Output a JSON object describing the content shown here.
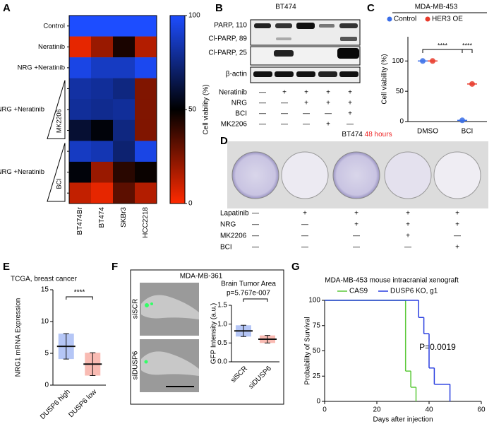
{
  "panel_labels": [
    "A",
    "B",
    "C",
    "D",
    "E",
    "F",
    "G"
  ],
  "chart_data": [
    {
      "type": "heatmap",
      "rows": [
        "Control",
        "Neratinib",
        "NRG +Neratinib",
        null,
        "NRG +Neratinib",
        null,
        null,
        "NRG +Neratinib",
        null
      ],
      "row_annotations": [
        "MK2206",
        "BCI"
      ],
      "columns": [
        "BT474Br",
        "BT474",
        "SKBr3",
        "HCC2218"
      ],
      "values": [
        [
          100,
          100,
          100,
          100
        ],
        [
          5,
          20,
          45,
          15
        ],
        [
          95,
          88,
          88,
          97
        ],
        [
          82,
          80,
          75,
          25
        ],
        [
          80,
          78,
          80,
          25
        ],
        [
          60,
          52,
          75,
          25
        ],
        [
          88,
          85,
          72,
          95
        ],
        [
          52,
          20,
          42,
          48
        ],
        [
          12,
          5,
          32,
          15
        ]
      ],
      "colorbar_label": "Cell viability (%)",
      "clim": [
        0,
        100
      ],
      "cticks": [
        0,
        50,
        100
      ],
      "colors": [
        "#ff2a00",
        "#000000",
        "#1d4dff"
      ]
    },
    {
      "type": "dot",
      "title": "MDA-MB-453",
      "categories": [
        "DMSO",
        "BCI"
      ],
      "series": [
        {
          "name": "Control",
          "color": "#3a6ee8",
          "values": [
            100,
            2
          ]
        },
        {
          "name": "HER3 OE",
          "color": "#e8392a",
          "values": [
            100,
            62
          ]
        }
      ],
      "ylabel": "Cell viability (%)",
      "ylim": [
        0,
        140
      ],
      "yticks": [
        0,
        50,
        100
      ],
      "significance": [
        "****",
        "****"
      ]
    },
    {
      "type": "summary",
      "title": "TCGA, breast cancer",
      "ylabel": "NRG1 mRNA Expression",
      "categories": [
        "DUSP6 high",
        "DUSP6 low"
      ],
      "colors": [
        "#2a5be6",
        "#ee3b24"
      ],
      "values": [
        6.1,
        3.3
      ],
      "errors": [
        2.0,
        1.8
      ],
      "ylim": [
        0,
        15
      ],
      "yticks": [
        0,
        5,
        10,
        15
      ],
      "significance": "****"
    },
    {
      "type": "summary",
      "title": "Brain Tumor Area",
      "annotation": "p=5.767e-007",
      "ylabel": "GFP Intensity (a.u.)",
      "categories": [
        "siSCR",
        "siDUSP6"
      ],
      "colors": [
        "#2a5be6",
        "#ee3b24"
      ],
      "values": [
        0.82,
        0.6
      ],
      "errors": [
        0.15,
        0.1
      ],
      "ylim": [
        0,
        1.5
      ],
      "yticks": [
        {
          "value": 0,
          "label": "0.0"
        },
        0.5,
        {
          "value": 1,
          "label": "1.0"
        },
        1.5
      ]
    },
    {
      "type": "survival",
      "title": "MDA-MB-453 mouse intracranial xenograft",
      "annotation": "P=0.0019",
      "xlabel": "Days after injection",
      "ylabel": "Probability of Survival",
      "xlim": [
        0,
        60
      ],
      "xticks": [
        0,
        20,
        40,
        60
      ],
      "ylim": [
        0,
        100
      ],
      "yticks": [
        0,
        25,
        50,
        75,
        100
      ],
      "series": [
        {
          "name": "CAS9",
          "color": "#5cc93a",
          "x": [
            0,
            31,
            33,
            35
          ],
          "values": [
            100,
            30,
            14,
            0
          ]
        },
        {
          "name": "DUSP6 KO, g1",
          "color": "#2a3fe0",
          "x": [
            0,
            36,
            38,
            40,
            42,
            48
          ],
          "values": [
            100,
            83,
            67,
            33,
            17,
            0
          ]
        }
      ]
    }
  ],
  "blot": {
    "title": "BT474",
    "bands": [
      "PARP, 110",
      "Cl-PARP, 89",
      "Cl-PARP, 25",
      "β-actin"
    ],
    "treatments": [
      {
        "name": "Neratinib",
        "lanes": [
          "—",
          "+",
          "+",
          "+",
          "+"
        ]
      },
      {
        "name": "NRG",
        "lanes": [
          "—",
          "—",
          "+",
          "+",
          "+"
        ]
      },
      {
        "name": "BCI",
        "lanes": [
          "—",
          "—",
          "—",
          "—",
          "+"
        ]
      },
      {
        "name": "MK2206",
        "lanes": [
          "—",
          "—",
          "—",
          "+",
          "—"
        ]
      }
    ]
  },
  "plate": {
    "title": "BT474",
    "subtitle": "48 hours",
    "treatments": [
      {
        "name": "Lapatinib",
        "lanes": [
          "—",
          "+",
          "+",
          "+",
          "+"
        ]
      },
      {
        "name": "NRG",
        "lanes": [
          "—",
          "—",
          "+",
          "+",
          "+"
        ]
      },
      {
        "name": "MK2206",
        "lanes": [
          "—",
          "—",
          "—",
          "+",
          "—"
        ]
      },
      {
        "name": "BCI",
        "lanes": [
          "—",
          "—",
          "—",
          "—",
          "+"
        ]
      }
    ]
  },
  "zebrafish": {
    "title": "MDA-MB-361",
    "images": [
      "siSCR",
      "siDUSP6"
    ]
  }
}
